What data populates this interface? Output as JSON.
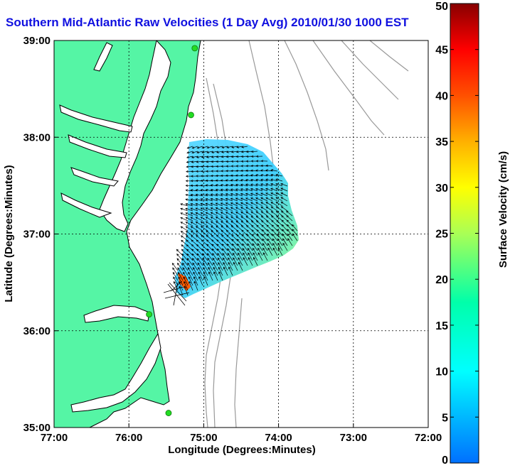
{
  "title": "Southern Mid-Atlantic Raw Velocities (1 Day Avg) 2010/01/30 1000 EST",
  "map": {
    "x_axis": {
      "label": "Longitude (Degrees:Minutes)",
      "ticks": [
        "77:00",
        "76:00",
        "75:00",
        "74:00",
        "73:00",
        "72:00"
      ],
      "range": [
        -77,
        -72
      ]
    },
    "y_axis": {
      "label": "Latitude (Degrees:Minutes)",
      "ticks": [
        "39:00",
        "38:00",
        "37:00",
        "36:00",
        "35:00"
      ],
      "range": [
        35,
        39
      ]
    },
    "grid": "dotted",
    "colors": {
      "land": "#55f5a5",
      "ocean": "#ffffff",
      "coastline": "#000000",
      "bathymetry_contours": "#999999",
      "stations": "#22dd22",
      "vectors": "#000000"
    },
    "stations": [
      {
        "lon": -75.12,
        "lat": 38.92
      },
      {
        "lon": -75.17,
        "lat": 38.23
      },
      {
        "lon": -75.73,
        "lat": 36.17
      },
      {
        "lon": -75.47,
        "lat": 35.15
      }
    ]
  },
  "colorbar": {
    "label": "Surface Velocity (cm/s)",
    "ticks": [
      "0",
      "5",
      "10",
      "15",
      "20",
      "25",
      "30",
      "35",
      "40",
      "45",
      "50"
    ],
    "range": [
      0,
      50
    ],
    "colormap": "jet"
  }
}
